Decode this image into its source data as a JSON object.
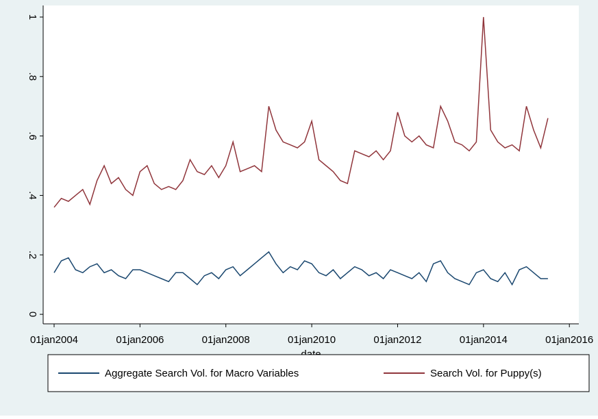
{
  "chart_data": {
    "type": "line",
    "x_label": "date",
    "x": [
      2004,
      2004.167,
      2004.333,
      2004.5,
      2004.667,
      2004.833,
      2005,
      2005.167,
      2005.333,
      2005.5,
      2005.667,
      2005.833,
      2006,
      2006.167,
      2006.333,
      2006.5,
      2006.667,
      2006.833,
      2007,
      2007.167,
      2007.333,
      2007.5,
      2007.667,
      2007.833,
      2008,
      2008.167,
      2008.333,
      2008.5,
      2008.667,
      2008.833,
      2009,
      2009.167,
      2009.333,
      2009.5,
      2009.667,
      2009.833,
      2010,
      2010.167,
      2010.333,
      2010.5,
      2010.667,
      2010.833,
      2011,
      2011.167,
      2011.333,
      2011.5,
      2011.667,
      2011.833,
      2012,
      2012.167,
      2012.333,
      2012.5,
      2012.667,
      2012.833,
      2013,
      2013.167,
      2013.333,
      2013.5,
      2013.667,
      2013.833,
      2014,
      2014.167,
      2014.333,
      2014.5,
      2014.667,
      2014.833,
      2015,
      2015.167,
      2015.333,
      2015.5
    ],
    "series": [
      {
        "name": "Aggregate Search Vol. for Macro Variables",
        "color": "#1a476f",
        "values": [
          0.14,
          0.18,
          0.19,
          0.15,
          0.14,
          0.16,
          0.17,
          0.14,
          0.15,
          0.13,
          0.12,
          0.15,
          0.15,
          0.14,
          0.13,
          0.12,
          0.11,
          0.14,
          0.14,
          0.12,
          0.1,
          0.13,
          0.14,
          0.12,
          0.15,
          0.16,
          0.13,
          0.15,
          0.17,
          0.19,
          0.21,
          0.17,
          0.14,
          0.16,
          0.15,
          0.18,
          0.17,
          0.14,
          0.13,
          0.15,
          0.12,
          0.14,
          0.16,
          0.15,
          0.13,
          0.14,
          0.12,
          0.15,
          0.14,
          0.13,
          0.12,
          0.14,
          0.11,
          0.17,
          0.18,
          0.14,
          0.12,
          0.11,
          0.1,
          0.14,
          0.15,
          0.12,
          0.11,
          0.14,
          0.1,
          0.15,
          0.16,
          0.14,
          0.12,
          0.12
        ]
      },
      {
        "name": "Search Vol. for Puppy(s)",
        "color": "#90353b",
        "values": [
          0.36,
          0.39,
          0.38,
          0.4,
          0.42,
          0.37,
          0.45,
          0.5,
          0.44,
          0.46,
          0.42,
          0.4,
          0.48,
          0.5,
          0.44,
          0.42,
          0.43,
          0.42,
          0.45,
          0.52,
          0.48,
          0.47,
          0.5,
          0.46,
          0.5,
          0.58,
          0.48,
          0.49,
          0.5,
          0.48,
          0.7,
          0.62,
          0.58,
          0.57,
          0.56,
          0.58,
          0.65,
          0.52,
          0.5,
          0.48,
          0.45,
          0.44,
          0.55,
          0.54,
          0.53,
          0.55,
          0.52,
          0.55,
          0.68,
          0.6,
          0.58,
          0.6,
          0.57,
          0.56,
          0.7,
          0.65,
          0.58,
          0.57,
          0.55,
          0.58,
          1.0,
          0.62,
          0.58,
          0.56,
          0.57,
          0.55,
          0.7,
          0.62,
          0.56,
          0.66
        ]
      }
    ],
    "xlim": [
      2003.745,
      2016.22
    ],
    "xticks": [
      {
        "value": 2004,
        "label": "01jan2004"
      },
      {
        "value": 2006,
        "label": "01jan2006"
      },
      {
        "value": 2008,
        "label": "01jan2008"
      },
      {
        "value": 2010,
        "label": "01jan2010"
      },
      {
        "value": 2012,
        "label": "01jan2012"
      },
      {
        "value": 2014,
        "label": "01jan2014"
      },
      {
        "value": 2016,
        "label": "01jan2016"
      }
    ],
    "ylim": [
      -0.032,
      1.039
    ],
    "yticks": [
      0,
      {
        "value": 0.2,
        "label": ".2"
      },
      {
        "value": 0.4,
        "label": ".4"
      },
      {
        "value": 0.6,
        "label": ".6"
      },
      {
        "value": 0.8,
        "label": ".8"
      },
      1
    ],
    "grid": false
  }
}
